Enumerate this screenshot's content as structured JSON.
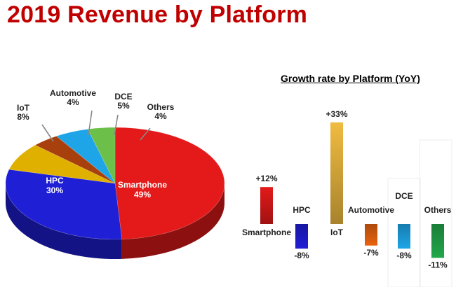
{
  "page": {
    "title": "2019 Revenue by Platform",
    "title_color": "#c00000"
  },
  "chart_data": [
    {
      "type": "pie",
      "title": "2019 Revenue by Platform",
      "slices": [
        {
          "name": "Smartphone",
          "value": 49,
          "label": "49%",
          "color": "#e41a1a"
        },
        {
          "name": "HPC",
          "value": 30,
          "label": "30%",
          "color": "#1f1fd6"
        },
        {
          "name": "IoT",
          "value": 8,
          "label": "8%",
          "color": "#e0b000"
        },
        {
          "name": "Automotive",
          "value": 4,
          "label": "4%",
          "color": "#a8400e"
        },
        {
          "name": "DCE",
          "value": 5,
          "label": "5%",
          "color": "#1ea5e8"
        },
        {
          "name": "Others",
          "value": 4,
          "label": "4%",
          "color": "#6cc04a"
        }
      ]
    },
    {
      "type": "bar",
      "title": "Growth rate by Platform (YoY)",
      "categories": [
        "Smartphone",
        "HPC",
        "IoT",
        "Automotive",
        "DCE",
        "Others"
      ],
      "values": [
        12,
        -8,
        33,
        -7,
        -8,
        -11
      ],
      "value_labels": [
        "+12%",
        "-8%",
        "+33%",
        "-7%",
        "-8%",
        "-11%"
      ],
      "colors": [
        "#e41a1a",
        "#1f1fd6",
        "#f0bb40",
        "#e8630f",
        "#1ea5e8",
        "#22a74a"
      ],
      "ylim": [
        -11,
        33
      ]
    }
  ]
}
